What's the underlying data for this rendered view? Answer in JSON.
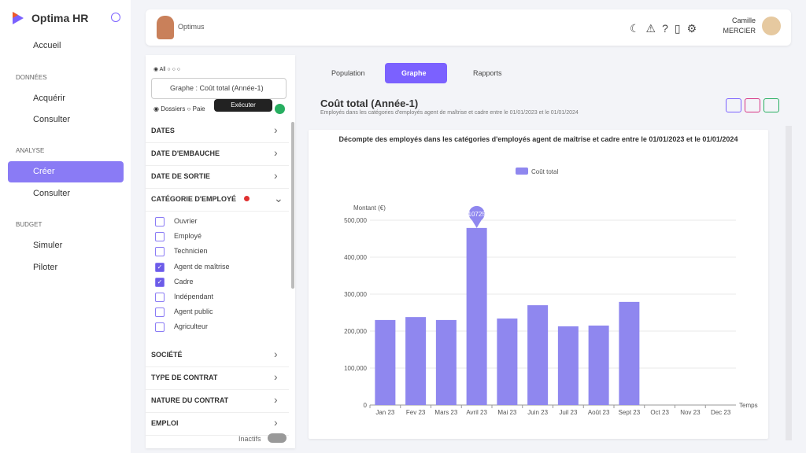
{
  "sidebar": {
    "brand": "Optima HR",
    "home": "Accueil",
    "sec1": "DONNÉES",
    "acq": "Acquérir",
    "cons1": "Consulter",
    "sec2": "ANALYSE",
    "create": "Créer",
    "cons2": "Consulter",
    "sec3": "BUDGET",
    "sim": "Simuler",
    "pilot": "Piloter"
  },
  "topbar": {
    "user": "Optimus",
    "first_name": "Camille",
    "last_name": "MERCIER"
  },
  "filters": {
    "radio_all": "All",
    "select": "Graphe : Coût total (Année-1)",
    "radio_dossiers": "Dossiers",
    "radio_paie": "Paie",
    "tooltip": "Exécuter",
    "groups": [
      "DATES",
      "DATE D'EMBAUCHE",
      "DATE DE SORTIE"
    ],
    "open_group": "CATÉGORIE D'EMPLOYÉ",
    "options": [
      {
        "label": "Ouvrier",
        "checked": false
      },
      {
        "label": "Employé",
        "checked": false
      },
      {
        "label": "Technicien",
        "checked": false
      },
      {
        "label": "Agent de maîtrise",
        "checked": true
      },
      {
        "label": "Cadre",
        "checked": true
      },
      {
        "label": "Indépendant",
        "checked": false
      },
      {
        "label": "Agent public",
        "checked": false
      },
      {
        "label": "Agriculteur",
        "checked": false
      }
    ],
    "groups_after": [
      "SOCIÉTÉ",
      "TYPE DE CONTRAT",
      "NATURE DU CONTRAT",
      "EMPLOI"
    ],
    "toggle": "Inactifs"
  },
  "tabs": [
    "Population",
    "Graphe",
    "Rapports"
  ],
  "report": {
    "title": "Coût total (Année-1)",
    "subtitle": "Employés dans les catégories d'employés agent de maîtrise et cadre entre le 01/01/2023 et le 01/01/2024"
  },
  "chart_data": {
    "type": "bar",
    "title": "Décompte des employés dans les catégories d'employés agent de maîtrise et cadre entre le 01/01/2023 et le 01/01/2024",
    "y_axis_label": "Montant (€)",
    "x_axis_label": "Temps",
    "annotation": "10725",
    "categories": [
      "Jan 23",
      "Fev 23",
      "Mars 23",
      "Avril 23",
      "Mai 23",
      "Juin 23",
      "Juil 23",
      "Août 23",
      "Sept 23",
      "Oct 23",
      "Nov 23",
      "Dec 23"
    ],
    "series": [
      {
        "name": "Coût total",
        "color": "#8f87ef",
        "values": [
          230000,
          238000,
          230000,
          479000,
          234000,
          270000,
          213000,
          215000,
          279000,
          null,
          null,
          null
        ]
      }
    ],
    "ylim": [
      0,
      500000
    ],
    "yticks": [
      0,
      {
        "value": 100000,
        "label": "100,000"
      },
      {
        "value": 200000,
        "label": "200,000"
      },
      {
        "value": 300000,
        "label": "300,000"
      },
      {
        "value": 400000,
        "label": "400,000"
      },
      {
        "value": 500000,
        "label": "500,000"
      }
    ],
    "grid": true
  }
}
